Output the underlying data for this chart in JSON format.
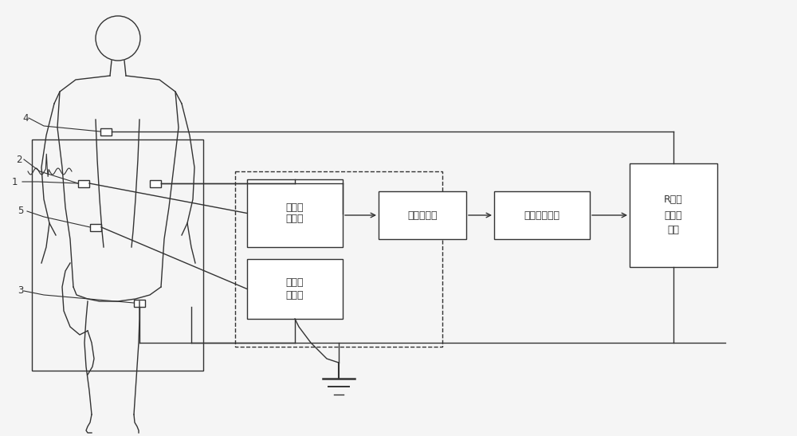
{
  "bg_color": "#f5f5f5",
  "line_color": "#333333",
  "fig_width": 10.0,
  "fig_height": 5.47,
  "labels": {
    "passive_network": "无源线\n性网络",
    "adc": "模数转换器",
    "standby_module": "电刀待机模块",
    "r_wave": "R波识\n别触发\n电路",
    "right_leg": "右腿驱\n动电路",
    "num1": "1",
    "num2": "2",
    "num3": "3",
    "num4": "4",
    "num5": "5"
  },
  "font_size": 9,
  "small_font_size": 8.5,
  "xscale": 10.0,
  "yscale": 5.47
}
